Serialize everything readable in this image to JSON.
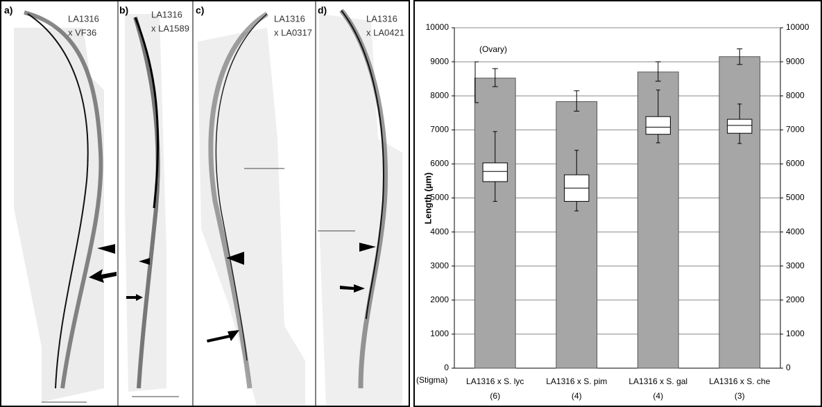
{
  "panels": [
    {
      "label": "a)",
      "line1": "LA1316",
      "line2": "x VF36"
    },
    {
      "label": "b)",
      "line1": "LA1316",
      "line2": "x LA1589"
    },
    {
      "label": "c)",
      "line1": "LA1316",
      "line2": "x LA0317"
    },
    {
      "label": "d)",
      "line1": "LA1316",
      "line2": "x LA0421"
    }
  ],
  "chart_data": {
    "type": "bar_box",
    "y_label": "Length (µm)",
    "categories": [
      "LA1316 x S. lyc",
      "LA1316 x S. pim",
      "LA1316 x S. gal",
      "LA1316 x S. che"
    ],
    "n_labels": [
      "(6)",
      "(4)",
      "(4)",
      "(3)"
    ],
    "values": [
      8520,
      7830,
      8700,
      9150
    ],
    "error_low": [
      8270,
      7550,
      8430,
      8920
    ],
    "error_high": [
      8800,
      8150,
      9000,
      9380
    ],
    "color": "#a6a6a6",
    "boxes": [
      {
        "whislo": 4900,
        "q1": 5480,
        "med": 5780,
        "q3": 6030,
        "whishi": 6950
      },
      {
        "whislo": 4620,
        "q1": 4900,
        "med": 5290,
        "q3": 5680,
        "whishi": 6400
      },
      {
        "whislo": 6620,
        "q1": 6870,
        "med": 7080,
        "q3": 7390,
        "whishi": 8170
      },
      {
        "whislo": 6600,
        "q1": 6900,
        "med": 7130,
        "q3": 7310,
        "whishi": 7760
      }
    ],
    "box_color": "#ffffff",
    "ylim": [
      0,
      10000
    ],
    "yticks": [
      0,
      1000,
      2000,
      3000,
      4000,
      5000,
      6000,
      7000,
      8000,
      9000,
      10000
    ],
    "y2lim": [
      0,
      10000
    ],
    "y2ticks": [
      0,
      1000,
      2000,
      3000,
      4000,
      5000,
      6000,
      7000,
      8000,
      9000,
      10000
    ],
    "grid": true,
    "annotations": [
      {
        "text": "(Ovary)",
        "from": 7800,
        "to": 9000
      },
      {
        "text": "(Stigma)"
      }
    ]
  }
}
